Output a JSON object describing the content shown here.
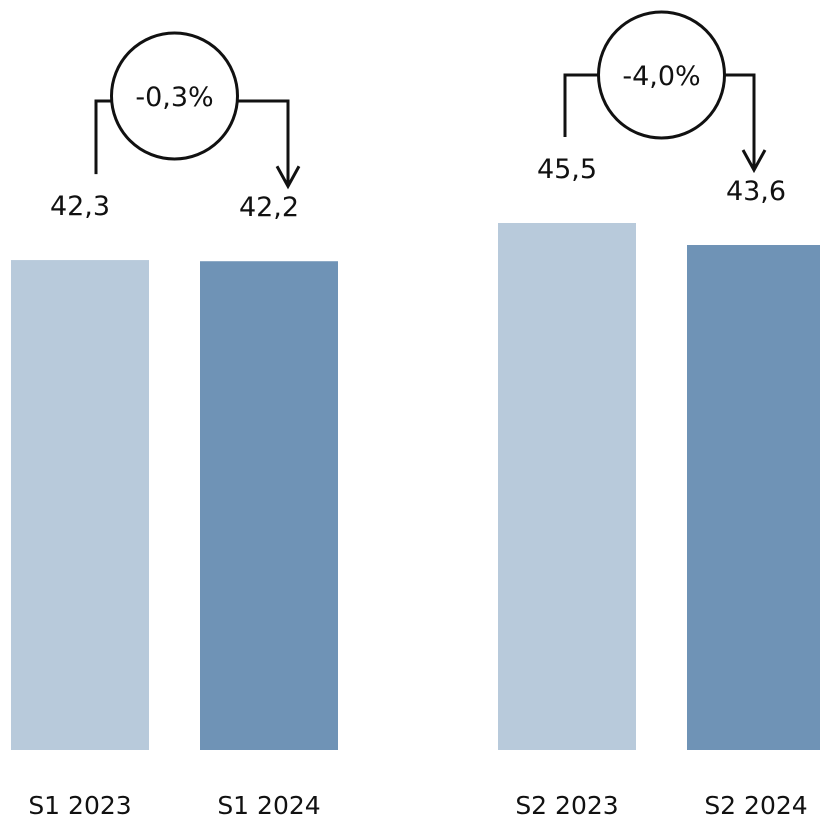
{
  "chart_data": [
    {
      "type": "bar",
      "categories": [
        "S1 2023",
        "S1 2024"
      ],
      "values": [
        42.3,
        42.2
      ],
      "value_labels": [
        "42,3",
        "42,2"
      ],
      "change_label": "-0,3%",
      "colors": [
        "#b8cadb",
        "#6f93b6"
      ],
      "title": "",
      "xlabel": "",
      "ylabel": "",
      "ylim": [
        0,
        45.5
      ],
      "grid": false,
      "legend": "none"
    },
    {
      "type": "bar",
      "categories": [
        "S2 2023",
        "S2 2024"
      ],
      "values": [
        45.5,
        43.6
      ],
      "value_labels": [
        "45,5",
        "43,6"
      ],
      "change_label": "-4,0%",
      "colors": [
        "#b8cadb",
        "#6f93b6"
      ],
      "title": "",
      "xlabel": "",
      "ylabel": "",
      "ylim": [
        0,
        45.5
      ],
      "grid": false,
      "legend": "none"
    }
  ]
}
